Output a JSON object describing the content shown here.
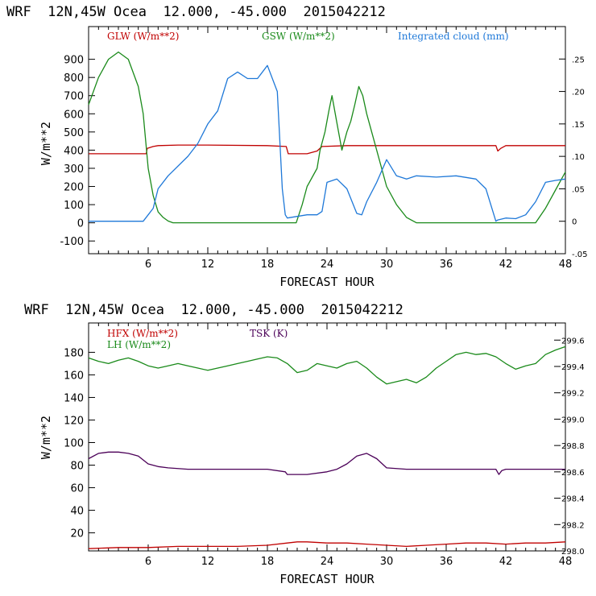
{
  "chart_data": [
    {
      "type": "line",
      "title": "WRF  12N,45W Ocea  12.000, -45.000  2015042212",
      "xlabel": "FORECAST HOUR",
      "ylabel": "W/m**2",
      "xlim": [
        0,
        48
      ],
      "ylim": [
        -170,
        1080
      ],
      "y2lim": [
        -0.05,
        0.3
      ],
      "x_ticks": [
        "6",
        "12",
        "18",
        "24",
        "30",
        "36",
        "42",
        "48"
      ],
      "y_ticks": [
        "900",
        "800",
        "700",
        "600",
        "500",
        "400",
        "300",
        "200",
        "100",
        "0",
        "-100"
      ],
      "y2_ticks": [
        ".25",
        ".20",
        ".15",
        ".10",
        ".05",
        "0",
        "-.05"
      ],
      "series": [
        {
          "name": "GLW (W/m**2)",
          "color": "#c00000",
          "axis": "left",
          "x": [
            0,
            5.8,
            5.9,
            6.5,
            7,
            9,
            12,
            18,
            19.9,
            20.1,
            22,
            23,
            23.5,
            26,
            30,
            36,
            41,
            41.2,
            41.5,
            42,
            48
          ],
          "values": [
            380,
            380,
            410,
            420,
            425,
            428,
            428,
            425,
            420,
            380,
            380,
            395,
            420,
            425,
            425,
            425,
            425,
            395,
            410,
            425,
            425
          ]
        },
        {
          "name": "GSW (W/m**2)",
          "color": "#1a8a1a",
          "axis": "left",
          "x": [
            0,
            1,
            2,
            3,
            4,
            5,
            5.5,
            6,
            6.5,
            7,
            7.5,
            8,
            8.5,
            9,
            12,
            18,
            20.9,
            21.5,
            22,
            23,
            23.3,
            23.8,
            24.2,
            24.5,
            25,
            25.5,
            26,
            26.4,
            26.8,
            27.2,
            27.6,
            28,
            29,
            30,
            31,
            32,
            33,
            45,
            46,
            47,
            48
          ],
          "values": [
            650,
            800,
            900,
            940,
            900,
            750,
            600,
            300,
            150,
            60,
            30,
            10,
            0,
            0,
            0,
            0,
            0,
            100,
            200,
            300,
            400,
            500,
            620,
            700,
            550,
            400,
            500,
            560,
            650,
            750,
            700,
            600,
            400,
            200,
            100,
            30,
            0,
            0,
            80,
            180,
            280
          ]
        },
        {
          "name": "Integrated cloud (mm)",
          "color": "#1e78d8",
          "axis": "right",
          "x": [
            0,
            5.5,
            6,
            6.5,
            7,
            8,
            10,
            11,
            12,
            13,
            14,
            15,
            16,
            17,
            18,
            19,
            19.5,
            19.8,
            20,
            22,
            23,
            23.5,
            24,
            25,
            26,
            27,
            27.5,
            28,
            29,
            30,
            31,
            32,
            33,
            35,
            37,
            39,
            40,
            41,
            41.2,
            42,
            43,
            44,
            45,
            46,
            47,
            48
          ],
          "values": [
            0,
            0,
            0.01,
            0.02,
            0.05,
            0.07,
            0.1,
            0.12,
            0.15,
            0.17,
            0.22,
            0.23,
            0.22,
            0.22,
            0.24,
            0.2,
            0.05,
            0.01,
            0.005,
            0.01,
            0.01,
            0.015,
            0.06,
            0.065,
            0.05,
            0.012,
            0.01,
            0.03,
            0.06,
            0.095,
            0.07,
            0.065,
            0.07,
            0.068,
            0.07,
            0.065,
            0.05,
            0,
            0.002,
            0.005,
            0.004,
            0.01,
            0.03,
            0.06,
            0.063,
            0.065
          ]
        }
      ]
    },
    {
      "type": "line",
      "title": "WRF  12N,45W Ocea  12.000, -45.000  2015042212",
      "xlabel": "FORECAST HOUR",
      "ylabel": "W/m**2",
      "xlim": [
        0,
        48
      ],
      "ylim": [
        4,
        206
      ],
      "y2lim": [
        298.0,
        299.73
      ],
      "x_ticks": [
        "6",
        "12",
        "18",
        "24",
        "30",
        "36",
        "42",
        "48"
      ],
      "y_ticks": [
        "180",
        "160",
        "140",
        "120",
        "100",
        "80",
        "60",
        "40",
        "20"
      ],
      "y2_ticks": [
        "299.6",
        "299.4",
        "299.2",
        "299.0",
        "298.8",
        "298.6",
        "298.4",
        "298.2",
        "298.0"
      ],
      "series": [
        {
          "name": "HFX (W/m**2)",
          "color": "#c00000",
          "axis": "left",
          "x": [
            0,
            3,
            6,
            9,
            12,
            15,
            18,
            20,
            21,
            22,
            24,
            26,
            28,
            30,
            32,
            34,
            36,
            38,
            40,
            42,
            44,
            46,
            48
          ],
          "values": [
            6,
            7,
            7,
            8,
            8,
            8,
            9,
            11,
            12,
            12,
            11,
            11,
            10,
            9,
            8,
            9,
            10,
            11,
            11,
            10,
            11,
            11,
            12
          ]
        },
        {
          "name": "LH (W/m**2)",
          "color": "#1a8a1a",
          "axis": "left",
          "x": [
            0,
            1,
            2,
            3,
            4,
            5,
            6,
            7,
            8,
            9,
            10,
            11,
            12,
            13,
            14,
            15,
            16,
            17,
            18,
            19,
            20,
            21,
            22,
            23,
            24,
            25,
            26,
            27,
            28,
            29,
            30,
            31,
            32,
            33,
            34,
            35,
            36,
            37,
            38,
            39,
            40,
            41,
            42,
            43,
            44,
            45,
            46,
            47,
            48
          ],
          "values": [
            175,
            172,
            170,
            173,
            175,
            172,
            168,
            166,
            168,
            170,
            168,
            166,
            164,
            166,
            168,
            170,
            172,
            174,
            176,
            175,
            170,
            162,
            164,
            170,
            168,
            166,
            170,
            172,
            166,
            158,
            152,
            154,
            156,
            153,
            158,
            166,
            172,
            178,
            180,
            178,
            179,
            176,
            170,
            165,
            168,
            170,
            178,
            182,
            185
          ]
        },
        {
          "name": "TSK (K)",
          "color": "#4b0058",
          "axis": "right",
          "x": [
            0,
            1,
            2,
            3,
            4,
            5,
            6,
            7,
            8,
            10,
            14,
            18,
            19.8,
            20,
            22,
            24,
            25,
            26,
            27,
            28,
            29,
            30,
            32,
            36,
            41,
            41.3,
            41.6,
            42,
            48
          ],
          "values": [
            298.7,
            298.74,
            298.75,
            298.75,
            298.74,
            298.72,
            298.66,
            298.64,
            298.63,
            298.62,
            298.62,
            298.62,
            298.6,
            298.58,
            298.58,
            298.6,
            298.62,
            298.66,
            298.72,
            298.74,
            298.7,
            298.63,
            298.62,
            298.62,
            298.62,
            298.58,
            298.61,
            298.62,
            298.62
          ]
        }
      ]
    }
  ]
}
